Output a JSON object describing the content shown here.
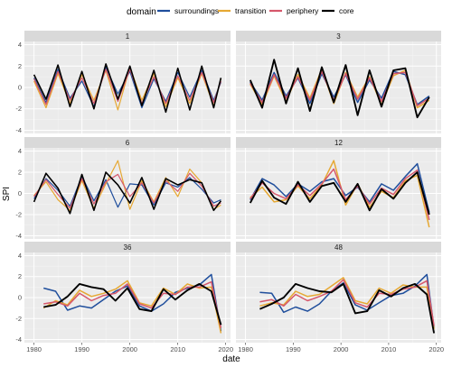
{
  "chart_data": {
    "type": "line",
    "xlabel": "date",
    "ylabel": "SPI",
    "xlim": [
      1978,
      2021
    ],
    "ylim": [
      -4.3,
      4.3
    ],
    "x_ticks": [
      1980,
      1990,
      2000,
      2010,
      2020
    ],
    "y_ticks": [
      -4,
      -2,
      0,
      2,
      4
    ],
    "grid": true,
    "legend_title": "domain",
    "legend_position": "top",
    "series": [
      {
        "name": "surroundings",
        "color": "#1f4e9c"
      },
      {
        "name": "transition",
        "color": "#e6a833"
      },
      {
        "name": "periphery",
        "color": "#d6576b"
      },
      {
        "name": "core",
        "color": "#000000"
      }
    ],
    "panels": [
      {
        "label": "1",
        "x": [
          1980,
          1982.5,
          1985,
          1987.5,
          1990,
          1992.5,
          1995,
          1997.5,
          2000,
          2002.5,
          2005,
          2007.5,
          2010,
          2012.5,
          2015,
          2017.5,
          2019
        ],
        "surroundings": [
          0.9,
          -1.4,
          1.7,
          -1.0,
          0.6,
          -1.8,
          1.9,
          -0.6,
          1.5,
          -1.9,
          0.8,
          -1.3,
          1.4,
          -0.9,
          1.6,
          -1.2,
          0.5
        ],
        "transition": [
          0.6,
          -1.9,
          1.3,
          -1.5,
          1.2,
          -1.2,
          1.6,
          -2.1,
          1.9,
          -1.2,
          1.3,
          -1.8,
          0.9,
          -1.5,
          1.3,
          -1.7,
          0.8
        ],
        "periphery": [
          0.8,
          -1.6,
          1.5,
          -1.2,
          0.9,
          -1.5,
          1.7,
          -1.3,
          1.7,
          -1.5,
          1.0,
          -1.5,
          1.1,
          -1.2,
          1.4,
          -1.4,
          0.6
        ],
        "core": [
          1.2,
          -1.1,
          2.1,
          -1.8,
          1.5,
          -2.0,
          2.2,
          -1.1,
          2.0,
          -1.7,
          1.6,
          -2.3,
          1.8,
          -2.1,
          2.0,
          -1.9,
          0.9
        ]
      },
      {
        "label": "3",
        "x": [
          1981,
          1983.5,
          1986,
          1988.5,
          1991,
          1993.5,
          1996,
          1998.5,
          2001,
          2003.5,
          2006,
          2008.5,
          2011,
          2013.5,
          2016,
          2018.5
        ],
        "surroundings": [
          0.5,
          -1.2,
          1.4,
          -0.8,
          0.9,
          -1.5,
          1.3,
          -0.9,
          1.2,
          -1.4,
          0.7,
          -1.0,
          1.5,
          1.2,
          -1.6,
          -0.8
        ],
        "transition": [
          0.3,
          -1.6,
          1.1,
          -1.3,
          1.2,
          -1.0,
          1.7,
          -1.5,
          1.4,
          -0.9,
          1.0,
          -1.6,
          1.1,
          1.6,
          -1.9,
          -1.2
        ],
        "periphery": [
          0.4,
          -1.4,
          1.2,
          -1.0,
          1.0,
          -1.2,
          1.5,
          -1.2,
          1.3,
          -1.1,
          0.9,
          -1.3,
          1.3,
          1.4,
          -1.7,
          -1.0
        ],
        "core": [
          0.7,
          -1.9,
          2.6,
          -1.5,
          1.8,
          -2.2,
          1.9,
          -1.4,
          2.1,
          -2.6,
          1.6,
          -1.8,
          1.6,
          1.8,
          -2.8,
          -0.9
        ]
      },
      {
        "label": "6",
        "x": [
          1980,
          1982.5,
          1985,
          1987.5,
          1990,
          1992.5,
          1995,
          1997.5,
          2000,
          2002.5,
          2005,
          2007.5,
          2010,
          2012.5,
          2015,
          2017.5,
          2019
        ],
        "surroundings": [
          -0.5,
          1.4,
          0.3,
          -1.2,
          1.6,
          -0.7,
          1.3,
          -1.3,
          0.9,
          0.8,
          -1.1,
          1.0,
          0.6,
          1.5,
          0.4,
          -0.9,
          -0.6
        ],
        "transition": [
          -0.2,
          1.1,
          -0.6,
          -1.6,
          1.2,
          -1.4,
          0.9,
          3.1,
          -1.5,
          1.2,
          -0.8,
          1.5,
          -0.3,
          2.3,
          1.0,
          -1.5,
          -1.1
        ],
        "periphery": [
          -0.3,
          1.3,
          -0.1,
          -1.4,
          1.4,
          -1.0,
          1.1,
          1.8,
          -0.3,
          1.0,
          -0.9,
          1.2,
          0.2,
          1.9,
          0.7,
          -1.2,
          -0.9
        ],
        "core": [
          -0.8,
          1.9,
          0.5,
          -1.9,
          1.8,
          -1.6,
          2.0,
          0.8,
          -0.9,
          1.5,
          -1.5,
          1.4,
          0.8,
          1.3,
          1.0,
          -1.6,
          -0.7
        ]
      },
      {
        "label": "12",
        "x": [
          1981,
          1983.5,
          1986,
          1988.5,
          1991,
          1993.5,
          1996,
          1998.5,
          2001,
          2003.5,
          2006,
          2008.5,
          2011,
          2013.5,
          2016,
          2018.5
        ],
        "surroundings": [
          -0.6,
          1.4,
          0.8,
          -0.3,
          0.9,
          0.2,
          1.1,
          1.4,
          -0.2,
          0.6,
          -0.8,
          0.9,
          0.3,
          1.6,
          2.8,
          -1.8
        ],
        "transition": [
          -0.4,
          0.6,
          -0.8,
          -0.6,
          0.7,
          -0.5,
          0.8,
          3.1,
          -1.1,
          0.9,
          -1.3,
          0.2,
          -0.4,
          1.2,
          1.7,
          -3.2
        ],
        "periphery": [
          -0.5,
          1.0,
          0.0,
          -0.5,
          0.8,
          -0.2,
          0.9,
          2.3,
          -0.6,
          0.7,
          -1.0,
          0.5,
          -0.1,
          1.4,
          2.2,
          -2.5
        ],
        "core": [
          -0.9,
          1.2,
          -0.4,
          -1.0,
          1.1,
          -0.8,
          0.7,
          1.0,
          -0.8,
          0.9,
          -1.6,
          0.4,
          -0.5,
          1.0,
          2.0,
          -2.0
        ]
      },
      {
        "label": "36",
        "x": [
          1982,
          1984.5,
          1987,
          1989.5,
          1992,
          1994.5,
          1997,
          1999.5,
          2002,
          2004.5,
          2007,
          2009.5,
          2012,
          2014.5,
          2017,
          2019
        ],
        "surroundings": [
          0.9,
          0.6,
          -1.2,
          -0.8,
          -1.0,
          -0.2,
          0.6,
          1.1,
          -0.8,
          -1.3,
          -0.6,
          0.5,
          0.9,
          1.2,
          2.2,
          -3.2
        ],
        "transition": [
          -1.0,
          -0.3,
          -0.7,
          0.7,
          0.1,
          0.4,
          0.8,
          1.6,
          -0.5,
          -0.8,
          0.9,
          0.3,
          1.3,
          0.9,
          1.0,
          -3.4
        ],
        "periphery": [
          -0.6,
          -0.4,
          -0.8,
          0.4,
          -0.3,
          0.2,
          0.4,
          1.3,
          -0.6,
          -1.0,
          0.4,
          0.3,
          1.0,
          1.0,
          1.5,
          -2.9
        ],
        "core": [
          -0.9,
          -0.7,
          0.1,
          1.3,
          1.0,
          0.8,
          -0.3,
          0.9,
          -1.1,
          -1.3,
          0.8,
          -0.2,
          0.7,
          1.3,
          0.6,
          -2.6
        ]
      },
      {
        "label": "48",
        "x": [
          1983,
          1985.5,
          1988,
          1990.5,
          1993,
          1995.5,
          1998,
          2000.5,
          2003,
          2005.5,
          2008,
          2010.5,
          2013,
          2015.5,
          2018,
          2019.5
        ],
        "surroundings": [
          0.5,
          0.4,
          -1.4,
          -0.9,
          -1.3,
          -0.6,
          0.6,
          1.4,
          -0.7,
          -1.2,
          -0.5,
          0.2,
          0.4,
          1.1,
          2.2,
          -2.9
        ],
        "transition": [
          -0.8,
          -0.5,
          -0.7,
          0.6,
          0.1,
          0.3,
          1.1,
          1.9,
          -0.3,
          -0.6,
          0.9,
          0.4,
          1.2,
          1.0,
          1.0,
          -3.0
        ],
        "periphery": [
          -0.4,
          -0.2,
          -0.8,
          0.3,
          -0.3,
          0.1,
          0.6,
          1.7,
          -0.5,
          -0.9,
          0.4,
          0.3,
          0.8,
          1.0,
          1.6,
          -2.7
        ],
        "core": [
          -1.1,
          -0.6,
          0.0,
          1.3,
          0.9,
          0.6,
          0.5,
          1.3,
          -1.5,
          -1.3,
          0.7,
          0.1,
          0.9,
          1.3,
          0.3,
          -3.4
        ]
      }
    ]
  }
}
